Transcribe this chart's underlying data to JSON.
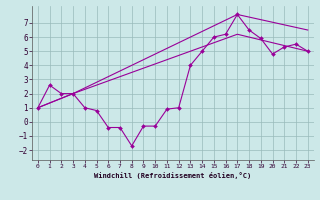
{
  "xlabel": "Windchill (Refroidissement éolien,°C)",
  "bg_color": "#cce8e8",
  "line_color": "#990099",
  "grid_color": "#99bbbb",
  "xlim": [
    -0.5,
    23.5
  ],
  "ylim": [
    -2.7,
    8.2
  ],
  "xticks": [
    0,
    1,
    2,
    3,
    4,
    5,
    6,
    7,
    8,
    9,
    10,
    11,
    12,
    13,
    14,
    15,
    16,
    17,
    18,
    19,
    20,
    21,
    22,
    23
  ],
  "yticks": [
    -2,
    -1,
    0,
    1,
    2,
    3,
    4,
    5,
    6,
    7
  ],
  "line1_x": [
    0,
    1,
    2,
    3,
    4,
    5,
    6,
    7,
    8,
    9,
    10,
    11,
    12,
    13,
    14,
    15,
    16,
    17,
    18,
    19,
    20,
    21,
    22,
    23
  ],
  "line1_y": [
    1.0,
    2.6,
    2.0,
    2.0,
    1.0,
    0.8,
    -0.4,
    -0.4,
    -1.7,
    -0.3,
    -0.3,
    0.9,
    1.0,
    4.0,
    5.0,
    6.0,
    6.2,
    7.6,
    6.5,
    5.9,
    4.8,
    5.3,
    5.5,
    5.0
  ],
  "line2_x": [
    0,
    3,
    17,
    23
  ],
  "line2_y": [
    1.0,
    2.0,
    7.6,
    6.5
  ],
  "line3_x": [
    0,
    3,
    17,
    23
  ],
  "line3_y": [
    1.0,
    2.0,
    6.2,
    5.0
  ]
}
